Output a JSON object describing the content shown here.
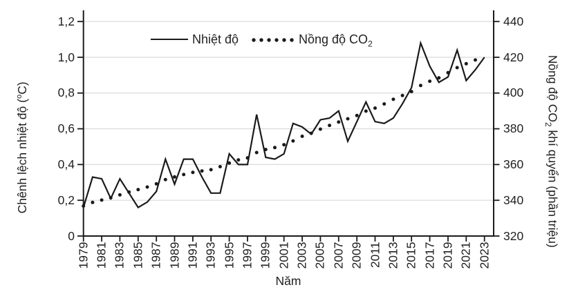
{
  "figure": {
    "legend": {
      "temperature_label": "Nhiệt độ",
      "co2_label_prefix": "Nồng độ CO",
      "co2_label_sub": "2"
    },
    "axes": {
      "x_title": "Năm",
      "left_title_prefix": "Chênh lệch nhiệt độ (",
      "left_title_sup": "o",
      "left_title_suffix": "C)",
      "right_title_prefix": "Nồng độ CO",
      "right_title_sub": "2",
      "right_title_suffix": " khí quyển (phần triệu)"
    }
  },
  "chart_data": {
    "type": "line",
    "title": "",
    "x": [
      1979,
      1980,
      1981,
      1982,
      1983,
      1984,
      1985,
      1986,
      1987,
      1988,
      1989,
      1990,
      1991,
      1992,
      1993,
      1994,
      1995,
      1996,
      1997,
      1998,
      1999,
      2000,
      2001,
      2002,
      2003,
      2004,
      2005,
      2006,
      2007,
      2008,
      2009,
      2010,
      2011,
      2012,
      2013,
      2014,
      2015,
      2016,
      2017,
      2018,
      2019,
      2020,
      2021,
      2022,
      2023
    ],
    "series": [
      {
        "name": "Nhiệt độ",
        "axis": "left",
        "style": "solid",
        "color": "#1a1a1a",
        "unit": "°C",
        "values": [
          0.16,
          0.33,
          0.32,
          0.21,
          0.32,
          0.24,
          0.16,
          0.19,
          0.25,
          0.43,
          0.29,
          0.43,
          0.43,
          0.33,
          0.24,
          0.24,
          0.46,
          0.4,
          0.4,
          0.68,
          0.44,
          0.43,
          0.46,
          0.63,
          0.61,
          0.57,
          0.65,
          0.66,
          0.7,
          0.53,
          0.64,
          0.75,
          0.64,
          0.63,
          0.66,
          0.74,
          0.83,
          1.08,
          0.95,
          0.86,
          0.89,
          1.04,
          0.87,
          0.93,
          1.0
        ]
      },
      {
        "name": "Nồng độ CO2",
        "axis": "right",
        "style": "dotted",
        "color": "#1a1a1a",
        "unit": "phần triệu (ppm)",
        "x_start": 1979,
        "x_end": 2022,
        "values": [
          336.8,
          338.8,
          340.1,
          341.4,
          343.0,
          344.6,
          346.0,
          347.4,
          349.2,
          351.6,
          353.1,
          354.4,
          355.6,
          356.4,
          357.1,
          358.8,
          360.8,
          362.6,
          363.7,
          366.7,
          368.4,
          369.5,
          371.1,
          373.2,
          375.8,
          377.5,
          379.8,
          381.9,
          383.8,
          385.6,
          387.4,
          389.9,
          391.6,
          393.9,
          396.5,
          398.6,
          400.8,
          404.2,
          406.6,
          408.5,
          411.4,
          414.2,
          416.4,
          418.5
        ]
      }
    ],
    "x_axis": {
      "title": "Năm",
      "tick_step": 2,
      "tick_labels": [
        "1979",
        "1981",
        "1983",
        "1985",
        "1987",
        "1989",
        "1991",
        "1993",
        "1995",
        "1997",
        "1999",
        "2001",
        "2003",
        "2005",
        "2007",
        "2009",
        "2011",
        "2013",
        "2015",
        "2017",
        "2019",
        "2021",
        "2023"
      ]
    },
    "y_left": {
      "title": "Chênh lệch nhiệt độ (°C)",
      "range": [
        0,
        1.2
      ],
      "tick_interval": 0.2,
      "tick_labels": [
        "0",
        "0,2",
        "0,4",
        "0,6",
        "0,8",
        "1,0",
        "1,2"
      ]
    },
    "y_right": {
      "title": "Nồng độ CO2 khí quyển (phần triệu)",
      "range": [
        320,
        440
      ],
      "tick_interval": 20,
      "tick_labels": [
        "320",
        "340",
        "360",
        "380",
        "400",
        "420",
        "440"
      ]
    },
    "grid": "horizontal",
    "legend_position": "top-center",
    "colors": {
      "line": "#1a1a1a",
      "grid": "#d9d9d9",
      "text": "#1f1f1f",
      "background": "#ffffff"
    }
  }
}
